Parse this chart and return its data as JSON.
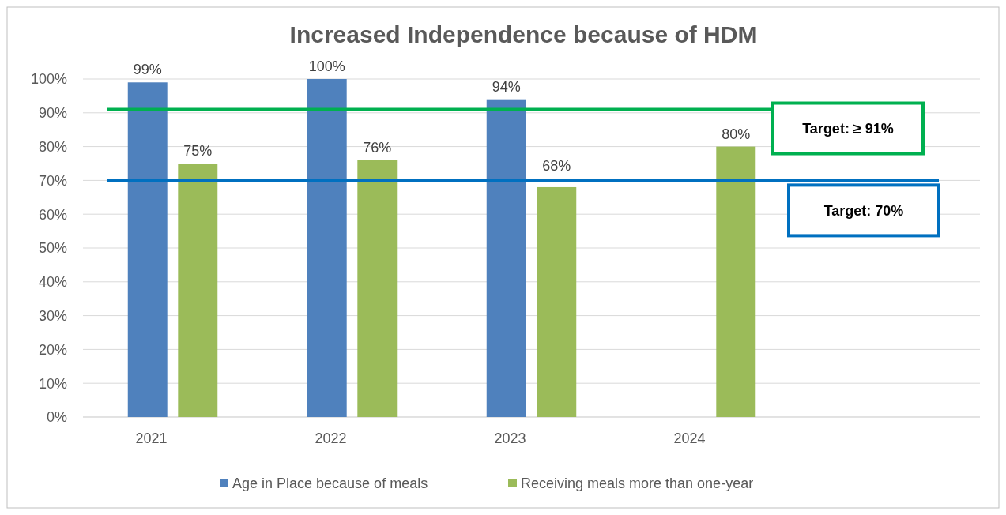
{
  "chart_data": {
    "type": "bar",
    "title": "Increased Independence because of HDM",
    "categories": [
      "2021",
      "2022",
      "2023",
      "2024",
      null
    ],
    "series": [
      {
        "name": "Age in Place because of meals",
        "color": "#4f81bd",
        "values": [
          99,
          100,
          94,
          null,
          null
        ]
      },
      {
        "name": "Receiving meals more than one-year",
        "color": "#9bbb59",
        "values": [
          75,
          76,
          68,
          80,
          null
        ]
      }
    ],
    "ylim": [
      0,
      100
    ],
    "yticks": [
      {
        "value": 0,
        "label": "0%"
      },
      {
        "value": 10,
        "label": "10%"
      },
      {
        "value": 20,
        "label": "20%"
      },
      {
        "value": 30,
        "label": "30%"
      },
      {
        "value": 40,
        "label": "40%"
      },
      {
        "value": 50,
        "label": "50%"
      },
      {
        "value": 60,
        "label": "60%"
      },
      {
        "value": 70,
        "label": "70%"
      },
      {
        "value": 80,
        "label": "80%"
      },
      {
        "value": 90,
        "label": "90%"
      },
      {
        "value": 100,
        "label": "100%"
      }
    ],
    "value_labels": [
      [
        "99%",
        "100%",
        "94%",
        null,
        null
      ],
      [
        "75%",
        "76%",
        "68%",
        "80%",
        null
      ]
    ],
    "ref_lines": [
      {
        "axis": "y",
        "value": 91,
        "label": "Target: ≥ 91%",
        "color": "#00b050"
      },
      {
        "axis": "y",
        "value": 70,
        "label": "Target: 70%",
        "color": "#0070c0"
      }
    ],
    "grid": "y",
    "legend": "bottom"
  }
}
